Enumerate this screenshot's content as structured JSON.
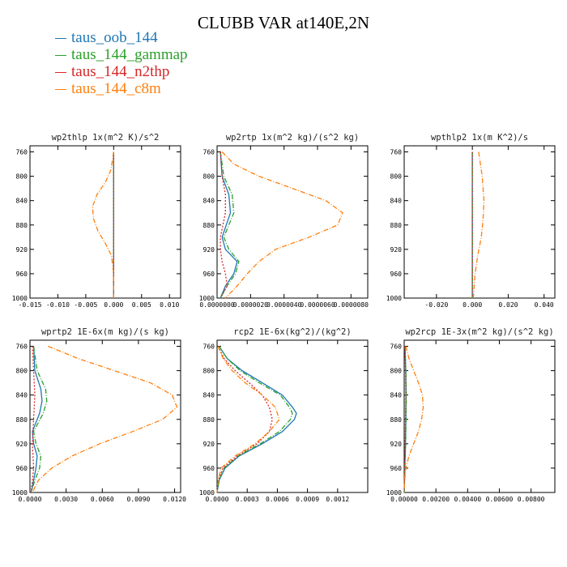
{
  "figure": {
    "title": "CLUBB VAR at140E,2N",
    "legend": [
      {
        "label": "taus_oob_144",
        "color": "#1f77b4"
      },
      {
        "label": "taus_144_gammap",
        "color": "#2ca02c"
      },
      {
        "label": "taus_144_n2thp",
        "color": "#d62728"
      },
      {
        "label": "taus_144_c8m",
        "color": "#ff7f0e"
      }
    ]
  },
  "chart_data": [
    {
      "type": "line",
      "title": "wp2thlp  1x(m^2 K)/s^2",
      "xlim": [
        -0.015,
        0.012
      ],
      "ylim": [
        1000,
        750
      ],
      "xticks": [
        -0.015,
        -0.01,
        -0.005,
        0.0,
        0.005,
        0.01
      ],
      "xtick_labels": [
        "-0.015",
        "-0.010",
        "-0.005",
        "0.000",
        "0.005",
        "0.010"
      ],
      "yticks": [
        760,
        800,
        840,
        880,
        920,
        960,
        1000
      ],
      "ytick_labels": [
        "760",
        "800",
        "840",
        "880",
        "920",
        "960",
        "1000"
      ],
      "series": [
        {
          "name": "taus_oob_144",
          "y": [
            760,
            800,
            840,
            880,
            920,
            960,
            1000
          ],
          "x": [
            0,
            0,
            0,
            0,
            0,
            0,
            0
          ]
        },
        {
          "name": "taus_144_gammap",
          "y": [
            760,
            800,
            840,
            880,
            920,
            960,
            1000
          ],
          "x": [
            0,
            0,
            0,
            0,
            0,
            0,
            0
          ]
        },
        {
          "name": "taus_144_n2thp",
          "y": [
            760,
            800,
            840,
            880,
            920,
            960,
            1000
          ],
          "x": [
            0,
            0,
            0,
            0,
            0,
            0,
            0
          ]
        },
        {
          "name": "taus_144_c8m",
          "y": [
            760,
            790,
            810,
            830,
            850,
            870,
            890,
            910,
            930,
            960,
            1000
          ],
          "x": [
            0,
            -0.0005,
            -0.0015,
            -0.003,
            -0.0038,
            -0.0036,
            -0.0028,
            -0.0015,
            -0.0004,
            0,
            0
          ]
        }
      ]
    },
    {
      "type": "line",
      "title": "wp2rtp  1x(m^2 kg)/(s^2 kg)",
      "xlim": [
        0,
        9e-06
      ],
      "ylim": [
        1000,
        750
      ],
      "xticks": [
        0,
        2e-06,
        4e-06,
        6e-06,
        8e-06
      ],
      "xtick_labels": [
        "0.0000000",
        "0.0000020",
        "0.0000040",
        "0.0000060",
        "0.0000080"
      ],
      "yticks": [
        760,
        800,
        840,
        880,
        920,
        960,
        1000
      ],
      "ytick_labels": [
        "760",
        "800",
        "840",
        "880",
        "920",
        "960",
        "1000"
      ],
      "series": [
        {
          "name": "taus_oob_144",
          "y": [
            760,
            800,
            830,
            860,
            900,
            920,
            940,
            960,
            980,
            1000
          ],
          "x": [
            2e-07,
            3e-07,
            7e-07,
            8e-07,
            3e-07,
            5e-07,
            1.2e-06,
            1e-06,
            5e-07,
            2e-07
          ]
        },
        {
          "name": "taus_144_gammap",
          "y": [
            760,
            800,
            830,
            860,
            900,
            920,
            940,
            960,
            980,
            1000
          ],
          "x": [
            2e-07,
            4e-07,
            9e-07,
            1e-06,
            4e-07,
            7e-07,
            1.3e-06,
            1.1e-06,
            6e-07,
            2e-07
          ]
        },
        {
          "name": "taus_144_n2thp",
          "y": [
            760,
            800,
            830,
            860,
            900,
            920,
            940,
            960,
            980,
            1000
          ],
          "x": [
            2e-07,
            3e-07,
            5e-07,
            5e-07,
            2e-07,
            2e-07,
            3e-07,
            5e-07,
            6e-07,
            2e-07
          ]
        },
        {
          "name": "taus_144_c8m",
          "y": [
            760,
            780,
            800,
            820,
            840,
            860,
            880,
            900,
            920,
            940,
            960,
            980,
            1000
          ],
          "x": [
            3e-07,
            1e-06,
            2.5e-06,
            4.5e-06,
            6.5e-06,
            7.5e-06,
            7.2e-06,
            5.5e-06,
            3.5e-06,
            2.5e-06,
            1.8e-06,
            1.2e-06,
            5e-07
          ]
        }
      ]
    },
    {
      "type": "line",
      "title": "wpthlp2  1x(m K^2)/s",
      "xlim": [
        -0.038,
        0.046
      ],
      "ylim": [
        1000,
        750
      ],
      "xticks": [
        -0.02,
        0.0,
        0.02,
        0.04
      ],
      "xtick_labels": [
        "-0.020",
        "0.000",
        "0.020",
        "0.040"
      ],
      "yticks": [
        760,
        800,
        840,
        880,
        920,
        960,
        1000
      ],
      "ytick_labels": [
        "760",
        "800",
        "840",
        "880",
        "920",
        "960",
        "1000"
      ],
      "series": [
        {
          "name": "taus_oob_144",
          "y": [
            760,
            800,
            840,
            880,
            920,
            960,
            1000
          ],
          "x": [
            0,
            0,
            0,
            0,
            0,
            0,
            0
          ]
        },
        {
          "name": "taus_144_gammap",
          "y": [
            760,
            800,
            840,
            880,
            920,
            960,
            1000
          ],
          "x": [
            0,
            0,
            0,
            0,
            0,
            0,
            0
          ]
        },
        {
          "name": "taus_144_n2thp",
          "y": [
            760,
            800,
            840,
            880,
            920,
            960,
            1000
          ],
          "x": [
            0,
            0,
            0,
            0,
            0,
            0,
            0
          ]
        },
        {
          "name": "taus_144_c8m",
          "y": [
            760,
            800,
            840,
            870,
            900,
            930,
            960,
            1000
          ],
          "x": [
            0.0035,
            0.0055,
            0.0065,
            0.006,
            0.005,
            0.003,
            0.0015,
            0.0005
          ]
        }
      ]
    },
    {
      "type": "line",
      "title": "wprtp2  1E-6x(m kg)/(s kg)",
      "xlim": [
        0,
        0.0125
      ],
      "ylim": [
        1000,
        750
      ],
      "xticks": [
        0,
        0.003,
        0.006,
        0.009,
        0.012
      ],
      "xtick_labels": [
        "0.0000",
        "0.0030",
        "0.0060",
        "0.0090",
        "0.0120"
      ],
      "yticks": [
        760,
        800,
        840,
        880,
        920,
        960,
        1000
      ],
      "ytick_labels": [
        "760",
        "800",
        "840",
        "880",
        "920",
        "960",
        "1000"
      ],
      "series": [
        {
          "name": "taus_oob_144",
          "y": [
            760,
            800,
            830,
            850,
            870,
            900,
            920,
            940,
            960,
            980,
            1000
          ],
          "x": [
            0.0003,
            0.0004,
            0.0009,
            0.001,
            0.0008,
            0.0002,
            0.0003,
            0.0006,
            0.0005,
            0.0003,
            0.0001
          ]
        },
        {
          "name": "taus_144_gammap",
          "y": [
            760,
            800,
            830,
            850,
            870,
            900,
            920,
            940,
            960,
            980,
            1000
          ],
          "x": [
            0.0003,
            0.0006,
            0.0013,
            0.0014,
            0.0011,
            0.0003,
            0.0005,
            0.0009,
            0.0008,
            0.0004,
            0.0001
          ]
        },
        {
          "name": "taus_144_n2thp",
          "y": [
            760,
            800,
            840,
            880,
            920,
            960,
            1000
          ],
          "x": [
            0.0002,
            0.0003,
            0.0004,
            0.0003,
            0.0002,
            0.0003,
            0.0001
          ]
        },
        {
          "name": "taus_144_c8m",
          "y": [
            760,
            780,
            800,
            820,
            840,
            860,
            880,
            900,
            920,
            940,
            960,
            980,
            1000
          ],
          "x": [
            0.0015,
            0.004,
            0.007,
            0.01,
            0.0118,
            0.0122,
            0.011,
            0.0085,
            0.0058,
            0.0035,
            0.0018,
            0.0007,
            0.0002
          ]
        }
      ]
    },
    {
      "type": "line",
      "title": "rcp2  1E-6x(kg^2)/(kg^2)",
      "xlim": [
        0,
        0.0015
      ],
      "ylim": [
        1000,
        750
      ],
      "xticks": [
        0,
        0.0003,
        0.0006,
        0.0009,
        0.0012
      ],
      "xtick_labels": [
        "0.0000",
        "0.0003",
        "0.0006",
        "0.0009",
        "0.0012"
      ],
      "yticks": [
        760,
        800,
        840,
        880,
        920,
        960,
        1000
      ],
      "ytick_labels": [
        "760",
        "800",
        "840",
        "880",
        "920",
        "960",
        "1000"
      ],
      "series": [
        {
          "name": "taus_oob_144",
          "y": [
            760,
            780,
            800,
            820,
            840,
            860,
            870,
            880,
            900,
            920,
            940,
            960,
            980,
            1000
          ],
          "x": [
            2e-05,
            0.0001,
            0.00025,
            0.00045,
            0.00065,
            0.00075,
            0.00079,
            0.00077,
            0.00065,
            0.00045,
            0.00022,
            8e-05,
            2e-05,
            0
          ]
        },
        {
          "name": "taus_144_gammap",
          "y": [
            760,
            780,
            800,
            820,
            840,
            860,
            870,
            880,
            900,
            920,
            940,
            960,
            980,
            1000
          ],
          "x": [
            2e-05,
            0.0001,
            0.00023,
            0.00042,
            0.00063,
            0.00072,
            0.00075,
            0.00073,
            0.00062,
            0.00043,
            0.00021,
            7e-05,
            2e-05,
            0
          ]
        },
        {
          "name": "taus_144_n2thp",
          "y": [
            760,
            780,
            800,
            820,
            840,
            860,
            880,
            900,
            920,
            940,
            960,
            980,
            1000
          ],
          "x": [
            1e-05,
            7e-05,
            0.00018,
            0.00032,
            0.00045,
            0.00052,
            0.00055,
            0.00052,
            0.0004,
            0.0002,
            6e-05,
            1e-05,
            0
          ]
        },
        {
          "name": "taus_144_c8m",
          "y": [
            760,
            780,
            800,
            820,
            840,
            860,
            880,
            900,
            920,
            940,
            960,
            980,
            1000
          ],
          "x": [
            1e-05,
            6e-05,
            0.00015,
            0.00028,
            0.00045,
            0.00058,
            0.00062,
            0.00052,
            0.00038,
            0.00018,
            4e-05,
            1e-05,
            0
          ]
        }
      ]
    },
    {
      "type": "line",
      "title": "wp2rcp  1E-3x(m^2 kg)/(s^2 kg)",
      "xlim": [
        0,
        0.0095
      ],
      "ylim": [
        1000,
        750
      ],
      "xticks": [
        0,
        0.002,
        0.004,
        0.006,
        0.008
      ],
      "xtick_labels": [
        "0.00000",
        "0.00200",
        "0.00400",
        "0.00600",
        "0.00800"
      ],
      "yticks": [
        760,
        800,
        840,
        880,
        920,
        960,
        1000
      ],
      "ytick_labels": [
        "760",
        "800",
        "840",
        "880",
        "920",
        "960",
        "1000"
      ],
      "series": [
        {
          "name": "taus_oob_144",
          "y": [
            760,
            800,
            840,
            880,
            920,
            960,
            1000
          ],
          "x": [
            5e-05,
            0.0001,
            0.00012,
            0.0001,
            8e-05,
            4e-05,
            0
          ]
        },
        {
          "name": "taus_144_gammap",
          "y": [
            760,
            800,
            840,
            880,
            920,
            960,
            1000
          ],
          "x": [
            5e-05,
            0.0001,
            0.00014,
            0.00012,
            9e-05,
            4e-05,
            0
          ]
        },
        {
          "name": "taus_144_n2thp",
          "y": [
            760,
            800,
            840,
            880,
            920,
            960,
            1000
          ],
          "x": [
            4e-05,
            8e-05,
            0.0001,
            8e-05,
            6e-05,
            3e-05,
            0
          ]
        },
        {
          "name": "taus_144_c8m",
          "y": [
            760,
            780,
            800,
            820,
            840,
            860,
            880,
            900,
            920,
            940,
            960,
            980,
            1000
          ],
          "x": [
            0.0001,
            0.0003,
            0.0006,
            0.0009,
            0.00115,
            0.0012,
            0.0011,
            0.0009,
            0.0006,
            0.0003,
            0.0001,
            3e-05,
            0
          ]
        }
      ]
    }
  ]
}
